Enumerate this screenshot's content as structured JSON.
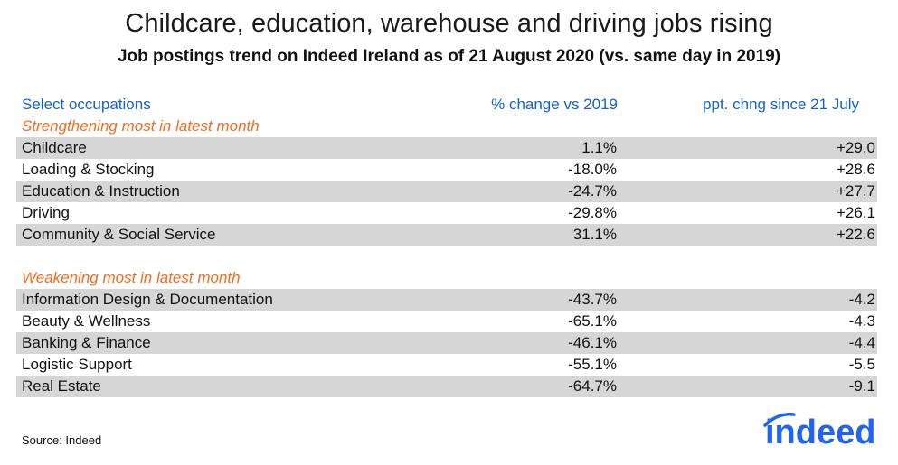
{
  "title": "Childcare, education, warehouse and driving jobs rising",
  "subtitle": "Job postings trend on Indeed Ireland as of 21 August 2020 (vs. same day in 2019)",
  "chart_data": {
    "type": "table",
    "columns": [
      "Select occupations",
      "% change vs 2019",
      "ppt. chng since 21 July"
    ],
    "sections": [
      {
        "label": "Strengthening most in latest month",
        "rows": [
          {
            "occupation": "Childcare",
            "pct_change": "1.1%",
            "ppt_change": "+29.0"
          },
          {
            "occupation": "Loading & Stocking",
            "pct_change": "-18.0%",
            "ppt_change": "+28.6"
          },
          {
            "occupation": "Education & Instruction",
            "pct_change": "-24.7%",
            "ppt_change": "+27.7"
          },
          {
            "occupation": "Driving",
            "pct_change": "-29.8%",
            "ppt_change": "+26.1"
          },
          {
            "occupation": "Community & Social Service",
            "pct_change": "31.1%",
            "ppt_change": "+22.6"
          }
        ]
      },
      {
        "label": "Weakening most in latest month",
        "rows": [
          {
            "occupation": "Information Design & Documentation",
            "pct_change": "-43.7%",
            "ppt_change": "-4.2"
          },
          {
            "occupation": "Beauty & Wellness",
            "pct_change": "-65.1%",
            "ppt_change": "-4.3"
          },
          {
            "occupation": "Banking & Finance",
            "pct_change": "-46.1%",
            "ppt_change": "-4.4"
          },
          {
            "occupation": "Logistic Support",
            "pct_change": "-55.1%",
            "ppt_change": "-5.5"
          },
          {
            "occupation": "Real Estate",
            "pct_change": "-64.7%",
            "ppt_change": "-9.1"
          }
        ]
      }
    ]
  },
  "source": "Source: Indeed",
  "logo_text": "indeed",
  "colors": {
    "header": "#1560d4",
    "section": "#f26c21",
    "shade": "#d6d6d6",
    "logo": "#2164f3"
  }
}
